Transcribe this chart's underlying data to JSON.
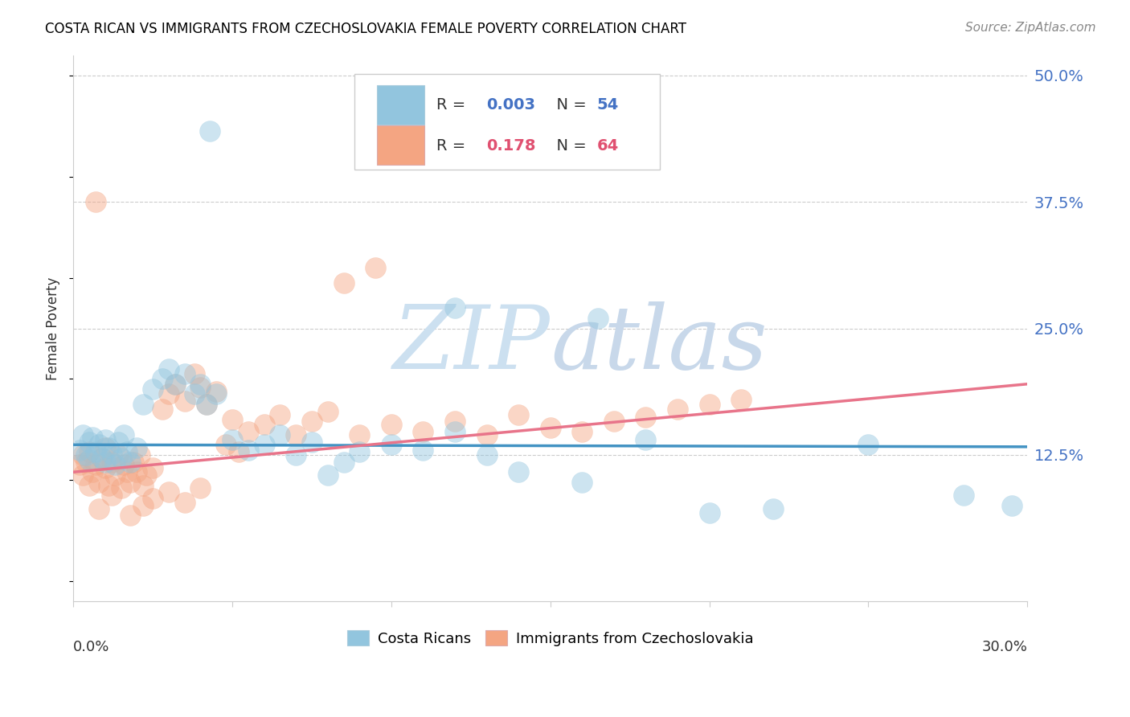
{
  "title": "COSTA RICAN VS IMMIGRANTS FROM CZECHOSLOVAKIA FEMALE POVERTY CORRELATION CHART",
  "source": "Source: ZipAtlas.com",
  "ylabel": "Female Poverty",
  "xlim": [
    0.0,
    0.3
  ],
  "ylim": [
    -0.02,
    0.52
  ],
  "ytick_vals": [
    0.125,
    0.25,
    0.375,
    0.5
  ],
  "ytick_labels": [
    "12.5%",
    "25.0%",
    "37.5%",
    "50.0%"
  ],
  "cr_color": "#92c5de",
  "cz_color": "#f4a582",
  "cr_color_light": "#aecfe8",
  "cz_color_light": "#f8c4b4",
  "trend_cr_color": "#4393c3",
  "trend_cz_color": "#e8748a",
  "axis_label_color": "#4472c4",
  "watermark_zip_color": "#cce0f0",
  "watermark_atlas_color": "#c8d8ea",
  "legend_box_color": "#dddddd",
  "cr_trend_x": [
    0.0,
    0.3
  ],
  "cr_trend_y": [
    0.135,
    0.133
  ],
  "cz_trend_x": [
    0.0,
    0.3
  ],
  "cz_trend_y": [
    0.108,
    0.195
  ],
  "grid_color": "#cccccc",
  "spine_color": "#cccccc"
}
